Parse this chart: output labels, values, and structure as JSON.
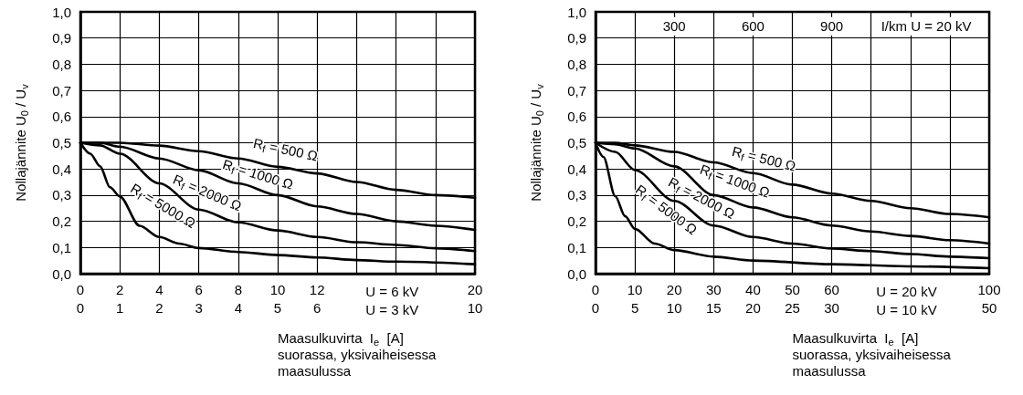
{
  "chart_data": [
    {
      "type": "line",
      "ylabel": "Nollajännite U$_{0}$ / U$_{v}$",
      "xlabel": "U = 6 kV",
      "x2label": "U = 3 kV",
      "xlim": [
        0,
        20
      ],
      "xticks": [
        0,
        2,
        4,
        6,
        8,
        10,
        12,
        {
          "value": 14,
          "label": null
        },
        {
          "value": 16,
          "label": null
        },
        {
          "value": 18,
          "label": null
        },
        20
      ],
      "x2lim": [
        0,
        10
      ],
      "x2ticks": [
        0,
        1,
        2,
        3,
        4,
        5,
        6,
        10
      ],
      "ylim": [
        0,
        1
      ],
      "yticks": [
        {
          "value": 0,
          "label": "0,0"
        },
        {
          "value": 0.1,
          "label": "0,1"
        },
        {
          "value": 0.2,
          "label": "0,2"
        },
        {
          "value": 0.3,
          "label": "0,3"
        },
        {
          "value": 0.4,
          "label": "0,4"
        },
        {
          "value": 0.5,
          "label": "0,5"
        },
        {
          "value": 0.6,
          "label": "0,6"
        },
        {
          "value": 0.7,
          "label": "0,7"
        },
        {
          "value": 0.8,
          "label": "0,8"
        },
        {
          "value": 0.9,
          "label": "0,9"
        },
        {
          "value": 1,
          "label": "1,0"
        }
      ],
      "grid": true,
      "marker": "none",
      "line_style": "solid",
      "series": [
        {
          "color": "#000000",
          "x": [
            0,
            2,
            4,
            6,
            8,
            10,
            12,
            14,
            16,
            18,
            20
          ],
          "values": [
            0.5,
            0.5,
            0.489,
            0.468,
            0.44,
            0.408,
            0.383,
            0.35,
            0.32,
            0.3,
            0.29
          ]
        },
        {
          "color": "#000000",
          "x": [
            0,
            1,
            2,
            4,
            6,
            8,
            10,
            12,
            14,
            16,
            18,
            20
          ],
          "values": [
            0.5,
            0.5,
            0.485,
            0.44,
            0.395,
            0.345,
            0.3,
            0.257,
            0.228,
            0.2,
            0.183,
            0.167
          ]
        },
        {
          "color": "#000000",
          "x": [
            0,
            1,
            2,
            4,
            6,
            8,
            10,
            12,
            14,
            16,
            18,
            20
          ],
          "values": [
            0.5,
            0.49,
            0.458,
            0.345,
            0.245,
            0.196,
            0.165,
            0.14,
            0.12,
            0.11,
            0.097,
            0.086
          ]
        },
        {
          "color": "#000000",
          "x": [
            0,
            0.5,
            1,
            1.5,
            2,
            3,
            4,
            5,
            6,
            8,
            10,
            12,
            14,
            16,
            20
          ],
          "values": [
            0.5,
            0.458,
            0.41,
            0.33,
            0.295,
            0.183,
            0.14,
            0.115,
            0.098,
            0.083,
            0.071,
            0.062,
            0.052,
            0.046,
            0.036
          ]
        }
      ],
      "annotations": [
        "R$_{f}$ = 500 Ω",
        "R$_{f}$ = 1000 Ω",
        "R$_{f}$ = 2000 Ω",
        "R$_{f}$ = 5000 Ω",
        "Maasulkuvirta  I$_{e}$  [A]\nsuorassa, yksivaiheisessa\nmaasulussa"
      ]
    },
    {
      "type": "line",
      "ylabel": "Nollajännite U$_{0}$ / U$_{v}$",
      "xlabel": "U = 20 kV",
      "x2label": "U = 10 kV",
      "xlim": [
        0,
        100
      ],
      "xticks": [
        0,
        10,
        20,
        30,
        40,
        50,
        60,
        {
          "value": 70,
          "label": null
        },
        {
          "value": 80,
          "label": null
        },
        {
          "value": 90,
          "label": null
        },
        100
      ],
      "x2lim": [
        0,
        50
      ],
      "x2ticks": [
        0,
        5,
        10,
        15,
        20,
        25,
        30,
        50
      ],
      "ylim": [
        0,
        1
      ],
      "yticks": [
        {
          "value": 0,
          "label": "0,0"
        },
        {
          "value": 0.1,
          "label": "0,1"
        },
        {
          "value": 0.2,
          "label": "0,2"
        },
        {
          "value": 0.3,
          "label": "0,3"
        },
        {
          "value": 0.4,
          "label": "0,4"
        },
        {
          "value": 0.5,
          "label": "0,5"
        },
        {
          "value": 0.6,
          "label": "0,6"
        },
        {
          "value": 0.7,
          "label": "0,7"
        },
        {
          "value": 0.8,
          "label": "0,8"
        },
        {
          "value": 0.9,
          "label": "0,9"
        },
        {
          "value": 1,
          "label": "1,0"
        }
      ],
      "grid": true,
      "marker": "none",
      "line_style": "solid",
      "series": [
        {
          "color": "#000000",
          "x": [
            0,
            5,
            10,
            20,
            30,
            40,
            50,
            60,
            70,
            80,
            90,
            100
          ],
          "values": [
            0.5,
            0.5,
            0.49,
            0.465,
            0.425,
            0.384,
            0.34,
            0.306,
            0.278,
            0.25,
            0.228,
            0.215
          ]
        },
        {
          "color": "#000000",
          "x": [
            0,
            5,
            10,
            20,
            30,
            40,
            50,
            60,
            70,
            80,
            90,
            100
          ],
          "values": [
            0.5,
            0.494,
            0.478,
            0.41,
            0.3,
            0.253,
            0.215,
            0.184,
            0.161,
            0.144,
            0.128,
            0.115
          ]
        },
        {
          "color": "#000000",
          "x": [
            0,
            5,
            10,
            20,
            30,
            40,
            50,
            60,
            70,
            80,
            90,
            100
          ],
          "values": [
            0.5,
            0.465,
            0.396,
            0.278,
            0.184,
            0.14,
            0.115,
            0.096,
            0.086,
            0.075,
            0.065,
            0.059
          ]
        },
        {
          "color": "#000000",
          "x": [
            0,
            2,
            5,
            7.5,
            10,
            15,
            20,
            30,
            40,
            60,
            80,
            100
          ],
          "values": [
            0.5,
            0.446,
            0.296,
            0.22,
            0.171,
            0.115,
            0.09,
            0.065,
            0.05,
            0.036,
            0.028,
            0.021
          ]
        }
      ],
      "annotations": [
        "R$_{f}$ = 500 Ω",
        "R$_{f}$ = 1000 Ω",
        "R$_{f}$ = 2000 Ω",
        "R$_{f}$ = 5000 Ω",
        "Maasulkuvirta  I$_{e}$  [A]\nsuorassa, yksivaiheisessa\nmaasulussa",
        "300",
        "600",
        "900",
        "I/km U = 20 kV"
      ]
    }
  ]
}
